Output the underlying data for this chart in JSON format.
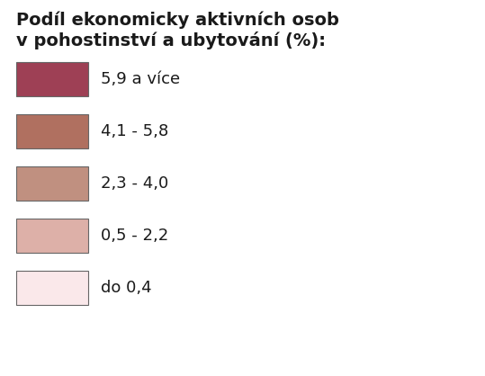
{
  "title_line1": "Podíl ekonomicky aktivních osob",
  "title_line2": "v pohostinství a ubytování (%):",
  "legend_items": [
    {
      "label": "5,9 a více",
      "color": "#9E4055"
    },
    {
      "label": "4,1 - 5,8",
      "color": "#B07060"
    },
    {
      "label": "2,3 - 4,0",
      "color": "#C09080"
    },
    {
      "label": "0,5 - 2,2",
      "color": "#DDB0A8"
    },
    {
      "label": "do 0,4",
      "color": "#FAE8EA"
    }
  ],
  "background_color": "#FFFFFF",
  "title_fontsize": 14,
  "label_fontsize": 13,
  "box_edge_color": "#666666"
}
